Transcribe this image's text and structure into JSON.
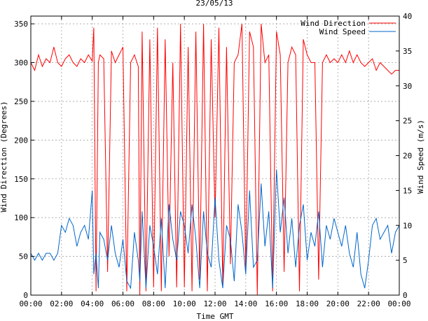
{
  "chart_data": {
    "type": "line",
    "title": "23/05/13",
    "xlabel": "Time GMT",
    "ylabel": "Wind Direction (Degrees)",
    "y2label": "Wind Speed (m/s)",
    "xlim": [
      0,
      24
    ],
    "ylim": [
      0,
      360
    ],
    "y2lim": [
      0,
      40
    ],
    "grid": true,
    "legend": "top-right",
    "x_ticks": [
      "00:00",
      "02:00",
      "04:00",
      "06:00",
      "08:00",
      "10:00",
      "12:00",
      "14:00",
      "16:00",
      "18:00",
      "20:00",
      "22:00",
      "00:00"
    ],
    "x_tick_values": [
      0,
      2,
      4,
      6,
      8,
      10,
      12,
      14,
      16,
      18,
      20,
      22,
      24
    ],
    "y_ticks": [
      "0",
      "50",
      "100",
      "150",
      "200",
      "250",
      "300",
      "350"
    ],
    "y_tick_values": [
      0,
      50,
      100,
      150,
      200,
      250,
      300,
      350
    ],
    "y2_ticks": [
      "0",
      "5",
      "10",
      "15",
      "20",
      "25",
      "30",
      "35",
      "40"
    ],
    "y2_tick_values": [
      0,
      5,
      10,
      15,
      20,
      25,
      30,
      35,
      40
    ],
    "series": [
      {
        "name": "Wind Direction",
        "axis": "left",
        "color": "#ff0000",
        "x": [
          0,
          0.25,
          0.5,
          0.75,
          1,
          1.25,
          1.5,
          1.75,
          2,
          2.25,
          2.5,
          2.75,
          3,
          3.25,
          3.5,
          3.75,
          4,
          4.1,
          4.25,
          4.4,
          4.5,
          4.75,
          5,
          5.25,
          5.5,
          5.75,
          6,
          6.25,
          6.5,
          6.75,
          7,
          7.1,
          7.25,
          7.5,
          7.75,
          8,
          8.25,
          8.5,
          8.75,
          9,
          9.25,
          9.5,
          9.75,
          10,
          10.25,
          10.5,
          10.75,
          11,
          11.25,
          11.5,
          11.75,
          12,
          12.25,
          12.5,
          12.75,
          13,
          13.25,
          13.5,
          13.75,
          14,
          14.25,
          14.5,
          14.75,
          15,
          15.25,
          15.5,
          15.75,
          16,
          16.25,
          16.5,
          16.75,
          17,
          17.25,
          17.5,
          17.75,
          18,
          18.25,
          18.5,
          18.75,
          19,
          19.25,
          19.5,
          19.75,
          20,
          20.25,
          20.5,
          20.75,
          21,
          21.25,
          21.5,
          21.75,
          22,
          22.25,
          22.5,
          22.75,
          23,
          23.25,
          23.5,
          23.75,
          24
        ],
        "values": [
          300,
          290,
          310,
          295,
          305,
          300,
          320,
          300,
          295,
          305,
          310,
          300,
          295,
          305,
          300,
          310,
          302,
          345,
          5,
          300,
          310,
          305,
          30,
          315,
          300,
          310,
          320,
          5,
          300,
          310,
          295,
          0,
          340,
          5,
          330,
          10,
          345,
          5,
          330,
          50,
          300,
          10,
          350,
          10,
          320,
          5,
          340,
          20,
          350,
          5,
          330,
          100,
          345,
          10,
          320,
          40,
          300,
          310,
          350,
          30,
          340,
          320,
          0,
          350,
          300,
          310,
          5,
          340,
          310,
          30,
          300,
          320,
          310,
          5,
          330,
          310,
          300,
          300,
          20,
          300,
          310,
          300,
          305,
          300,
          310,
          300,
          315,
          300,
          310,
          300,
          295,
          300,
          305,
          290,
          300,
          295,
          290,
          285,
          290,
          290
        ]
      },
      {
        "name": "Wind Speed",
        "axis": "right",
        "color": "#0066cc",
        "x": [
          0,
          0.25,
          0.5,
          0.75,
          1,
          1.25,
          1.5,
          1.75,
          2,
          2.25,
          2.5,
          2.75,
          3,
          3.25,
          3.5,
          3.75,
          4,
          4.1,
          4.25,
          4.4,
          4.5,
          4.75,
          5,
          5.25,
          5.5,
          5.75,
          6,
          6.25,
          6.5,
          6.75,
          7,
          7.1,
          7.25,
          7.5,
          7.75,
          8,
          8.25,
          8.5,
          8.75,
          9,
          9.25,
          9.5,
          9.75,
          10,
          10.25,
          10.5,
          10.75,
          11,
          11.25,
          11.5,
          11.75,
          12,
          12.25,
          12.5,
          12.75,
          13,
          13.25,
          13.5,
          13.75,
          14,
          14.25,
          14.5,
          14.75,
          15,
          15.25,
          15.5,
          15.75,
          16,
          16.25,
          16.5,
          16.75,
          17,
          17.25,
          17.5,
          17.75,
          18,
          18.25,
          18.5,
          18.75,
          19,
          19.25,
          19.5,
          19.75,
          20,
          20.25,
          20.5,
          20.75,
          21,
          21.25,
          21.5,
          21.75,
          22,
          22.25,
          22.5,
          22.75,
          23,
          23.25,
          23.5,
          23.75,
          24
        ],
        "values": [
          6,
          5,
          6,
          5,
          6,
          6,
          5,
          6,
          10,
          9,
          11,
          10,
          7,
          9,
          10,
          8,
          15,
          3,
          6,
          1,
          9,
          8,
          5,
          10,
          6,
          4,
          8,
          2,
          1,
          9,
          5,
          2,
          12,
          1,
          10,
          7,
          3,
          11,
          1,
          13,
          8,
          5,
          12,
          10,
          6,
          13,
          8,
          1,
          12,
          6,
          4,
          14,
          5,
          1,
          10,
          8,
          2,
          13,
          9,
          3,
          15,
          4,
          5,
          16,
          7,
          12,
          1,
          18,
          9,
          14,
          6,
          11,
          4,
          10,
          13,
          5,
          9,
          7,
          12,
          4,
          10,
          8,
          11,
          9,
          7,
          10,
          6,
          4,
          9,
          3,
          1,
          5,
          10,
          11,
          8,
          9,
          10,
          6,
          9,
          10
        ]
      }
    ]
  }
}
